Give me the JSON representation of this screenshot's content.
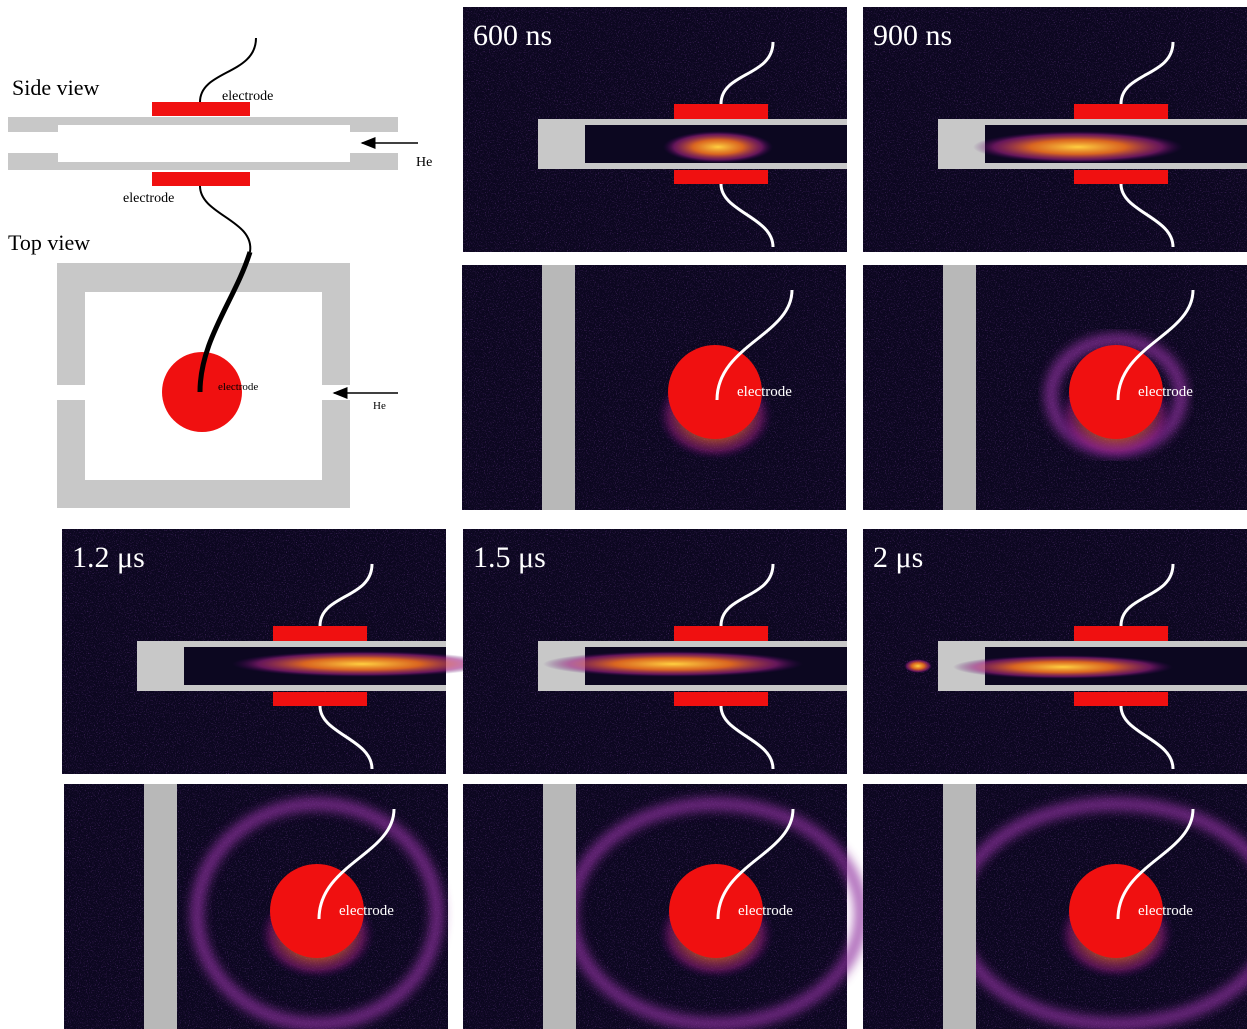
{
  "schematic": {
    "side_view": "Side view",
    "top_view": "Top view",
    "electrode_top": "electrode",
    "electrode_bottom": "electrode",
    "electrode_center": "electrode",
    "gas_side": "He",
    "gas_top": "He"
  },
  "side_panels": [
    {
      "time": "600 ns"
    },
    {
      "time": "900 ns"
    },
    {
      "time": "1.2 μs"
    },
    {
      "time": "1.5 μs"
    },
    {
      "time": "2 μs"
    }
  ],
  "top_panels": [
    {
      "label": "electrode"
    },
    {
      "label": "electrode"
    },
    {
      "label": "electrode"
    },
    {
      "label": "electrode"
    },
    {
      "label": "electrode"
    }
  ]
}
